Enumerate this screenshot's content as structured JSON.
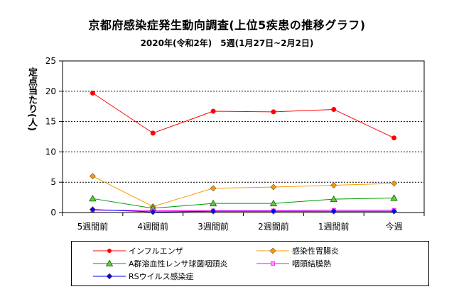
{
  "chart_data": {
    "type": "line",
    "title": "京都府感染症発生動向調査(上位5疾患の推移グラフ)",
    "subtitle": "2020年(令和2年)　5週(1月27日~2月2日)",
    "ylabel": "定点当たり(人)",
    "xlabel": "",
    "categories": [
      "5週間前",
      "4週間前",
      "3週間前",
      "2週間前",
      "1週間前",
      "今週"
    ],
    "ylim": [
      0,
      25
    ],
    "yticks": [
      "0",
      "5",
      "10",
      "15",
      "20",
      "25"
    ],
    "grid": "horizontal",
    "legend_position": "bottom",
    "series": [
      {
        "name": "インフルエンザ",
        "values": [
          19.7,
          13.1,
          16.7,
          16.6,
          17.0,
          12.3
        ],
        "color": "#ff0000",
        "marker": "circle"
      },
      {
        "name": "感染性胃腸炎",
        "values": [
          6.0,
          1.0,
          4.0,
          4.2,
          4.5,
          4.8
        ],
        "color": "#ff9900",
        "marker": "diamond"
      },
      {
        "name": "A群溶血性レンサ球菌咽頭炎",
        "values": [
          2.3,
          0.7,
          1.5,
          1.5,
          2.2,
          2.4
        ],
        "color": "#009900",
        "marker": "triangle"
      },
      {
        "name": "咽頭結膜熱",
        "values": [
          0.4,
          0.3,
          0.3,
          0.3,
          0.4,
          0.4
        ],
        "color": "#ff00ff",
        "marker": "square"
      },
      {
        "name": "RSウイルス感染症",
        "values": [
          0.5,
          0.1,
          0.2,
          0.2,
          0.2,
          0.2
        ],
        "color": "#0000ff",
        "marker": "diamond"
      }
    ]
  }
}
